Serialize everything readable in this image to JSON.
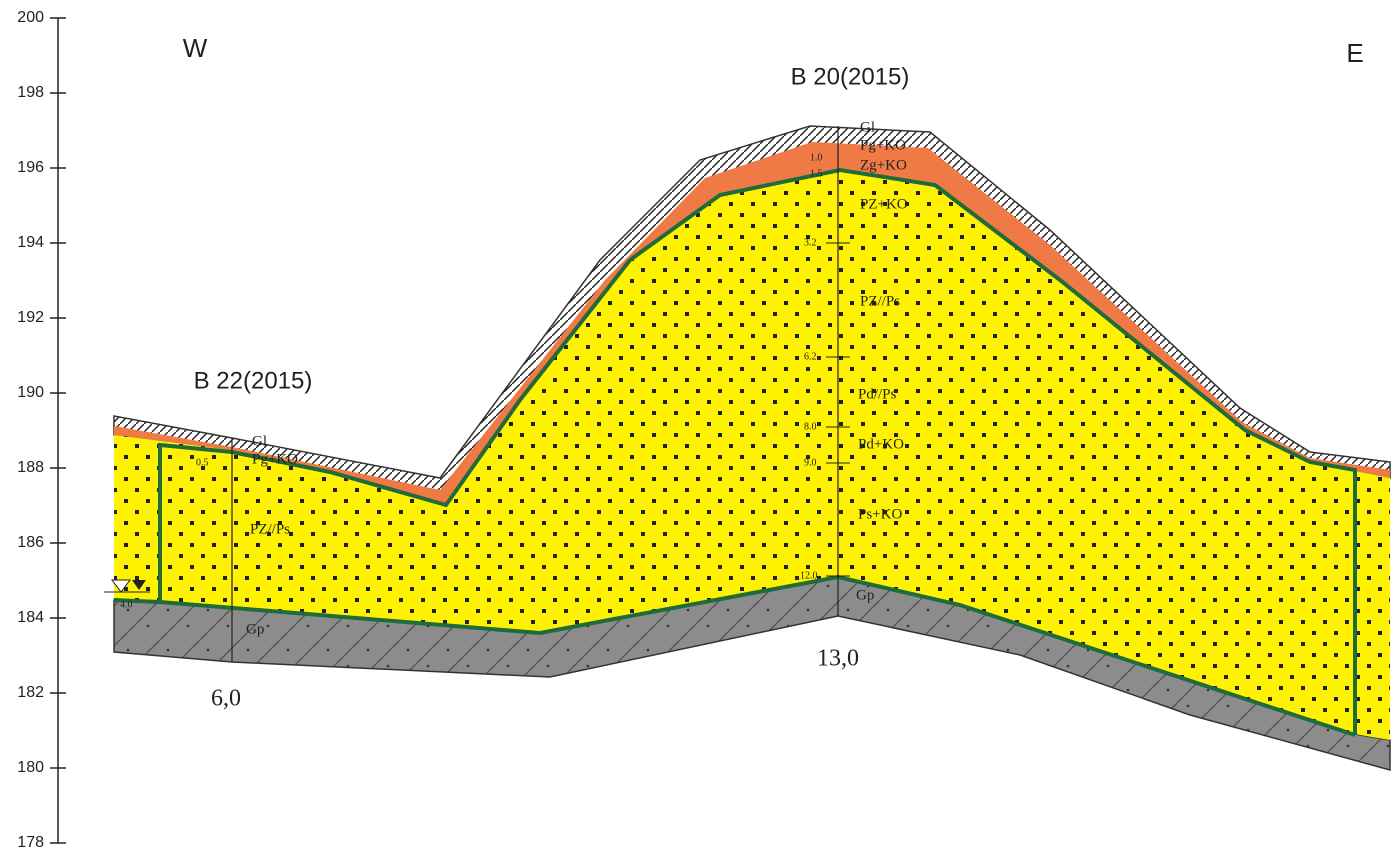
{
  "axis": {
    "ticks": [
      200,
      198,
      196,
      194,
      192,
      190,
      188,
      186,
      184,
      182,
      180,
      178
    ]
  },
  "header": {
    "west": "W",
    "east": "E"
  },
  "boreholes": [
    {
      "name": "B 22(2015)",
      "total_depth": "6,0",
      "layers": [
        "Gl",
        "Pg+KO",
        "PZ//Ps",
        "Gp"
      ],
      "depths": [
        "0.5",
        "4.0"
      ]
    },
    {
      "name": "B 20(2015)",
      "total_depth": "13,0",
      "layers": [
        "Gl",
        "Pg+KO",
        "Zg+KO",
        "PZ+KO",
        "PZ//Ps",
        "Pd//Ps",
        "Pd+KO",
        "Ps+KO",
        "Gp"
      ],
      "depths": [
        "1.0",
        "1.5",
        "3.2",
        "6.2",
        "8.0",
        "9.0",
        "12.0"
      ]
    }
  ]
}
